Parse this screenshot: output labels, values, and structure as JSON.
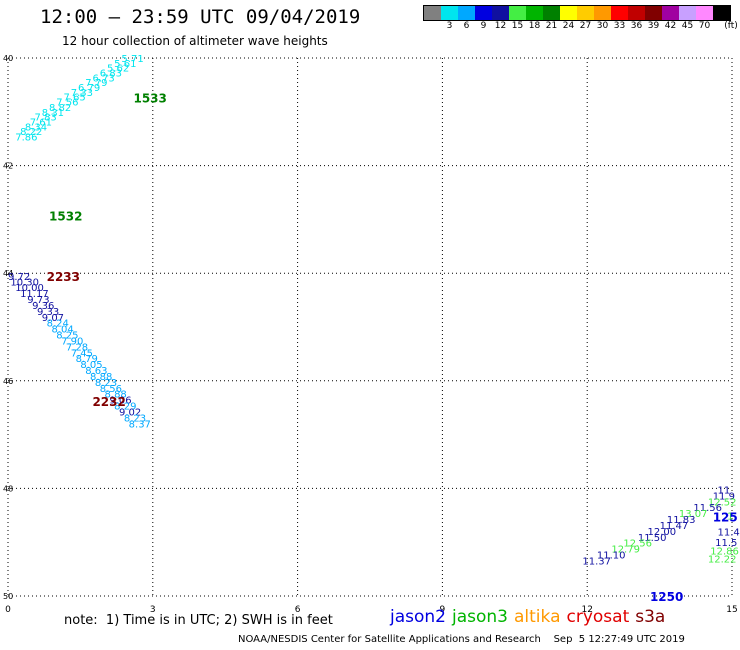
{
  "header": {
    "title": "12:00 – 23:59 UTC 09/04/2019",
    "subtitle": "12 hour collection of altimeter wave heights"
  },
  "colorbar": {
    "unit": "(ft)",
    "swatches": [
      {
        "color": "#808080",
        "label": ""
      },
      {
        "color": "#00e5ee",
        "label": "3"
      },
      {
        "color": "#00a8ff",
        "label": "6"
      },
      {
        "color": "#0000e0",
        "label": "9"
      },
      {
        "color": "#1010a0",
        "label": "12"
      },
      {
        "color": "#44ee44",
        "label": "15"
      },
      {
        "color": "#00b400",
        "label": "18"
      },
      {
        "color": "#008000",
        "label": "21"
      },
      {
        "color": "#ffff00",
        "label": "24"
      },
      {
        "color": "#ffcc00",
        "label": "27"
      },
      {
        "color": "#ff9900",
        "label": "30"
      },
      {
        "color": "#ff0000",
        "label": "33"
      },
      {
        "color": "#c00000",
        "label": "36"
      },
      {
        "color": "#800000",
        "label": "39"
      },
      {
        "color": "#a000a0",
        "label": "42"
      },
      {
        "color": "#c8a0ff",
        "label": "45"
      },
      {
        "color": "#ff88ff",
        "label": "70"
      },
      {
        "color": "#000000",
        "label": ""
      }
    ]
  },
  "map": {
    "lon_ticks": [
      "0",
      "3",
      "6",
      "9",
      "12",
      "15"
    ],
    "lat_ticks": [
      "40",
      "42",
      "44",
      "46",
      "48",
      "50"
    ],
    "lon_range": [
      0,
      15
    ],
    "lat_range": [
      40,
      50
    ],
    "grid": true,
    "pass_labels": [
      {
        "text": "1533",
        "lon": 2.6,
        "lat": 40.73,
        "color": "#008000"
      },
      {
        "text": "1532",
        "lon": 0.85,
        "lat": 42.93,
        "color": "#008000"
      },
      {
        "text": "2233",
        "lon": 0.8,
        "lat": 44.05,
        "color": "#800000"
      },
      {
        "text": "2232",
        "lon": 1.75,
        "lat": 46.38,
        "color": "#800000"
      },
      {
        "text": "1250",
        "lon": 13.3,
        "lat": 50.0,
        "color": "#0000e0"
      },
      {
        "text": "125",
        "lon": 14.6,
        "lat": 48.52,
        "color": "#0000e0"
      }
    ],
    "wave_heights": [
      {
        "text": "5.71",
        "lon": 2.35,
        "lat": 40.0,
        "color": "#00e5ee"
      },
      {
        "text": "5.61",
        "lon": 2.2,
        "lat": 40.09,
        "color": "#00e5ee"
      },
      {
        "text": "5.62",
        "lon": 2.05,
        "lat": 40.18,
        "color": "#00e5ee"
      },
      {
        "text": "6.83",
        "lon": 1.9,
        "lat": 40.27,
        "color": "#00e5ee"
      },
      {
        "text": "6.73",
        "lon": 1.75,
        "lat": 40.36,
        "color": "#00e5ee"
      },
      {
        "text": "7.79",
        "lon": 1.6,
        "lat": 40.45,
        "color": "#00e5ee"
      },
      {
        "text": "6.79",
        "lon": 1.45,
        "lat": 40.54,
        "color": "#00e5ee"
      },
      {
        "text": "7.33",
        "lon": 1.3,
        "lat": 40.63,
        "color": "#00e5ee"
      },
      {
        "text": "7.65",
        "lon": 1.15,
        "lat": 40.72,
        "color": "#00e5ee"
      },
      {
        "text": "7.56",
        "lon": 1.0,
        "lat": 40.81,
        "color": "#00e5ee"
      },
      {
        "text": "8.82",
        "lon": 0.85,
        "lat": 40.91,
        "color": "#00e5ee"
      },
      {
        "text": "8.31",
        "lon": 0.7,
        "lat": 41.0,
        "color": "#00e5ee"
      },
      {
        "text": "7.83",
        "lon": 0.55,
        "lat": 41.09,
        "color": "#00e5ee"
      },
      {
        "text": "7.61",
        "lon": 0.45,
        "lat": 41.18,
        "color": "#00e5ee"
      },
      {
        "text": "8.34",
        "lon": 0.35,
        "lat": 41.27,
        "color": "#00e5ee"
      },
      {
        "text": "8.22",
        "lon": 0.25,
        "lat": 41.36,
        "color": "#00e5ee"
      },
      {
        "text": "7.86",
        "lon": 0.15,
        "lat": 41.46,
        "color": "#00e5ee"
      },
      {
        "text": "9.72",
        "lon": 0.0,
        "lat": 44.05,
        "color": "#1010a0"
      },
      {
        "text": "10.30",
        "lon": 0.05,
        "lat": 44.15,
        "color": "#1010a0"
      },
      {
        "text": "10.00",
        "lon": 0.15,
        "lat": 44.26,
        "color": "#1010a0"
      },
      {
        "text": "11.17",
        "lon": 0.25,
        "lat": 44.37,
        "color": "#1010a0"
      },
      {
        "text": "9.73",
        "lon": 0.4,
        "lat": 44.48,
        "color": "#1010a0"
      },
      {
        "text": "9.36",
        "lon": 0.5,
        "lat": 44.59,
        "color": "#1010a0"
      },
      {
        "text": "9.33",
        "lon": 0.6,
        "lat": 44.7,
        "color": "#1010a0"
      },
      {
        "text": "9.07",
        "lon": 0.7,
        "lat": 44.81,
        "color": "#1010a0"
      },
      {
        "text": "8.24",
        "lon": 0.8,
        "lat": 44.92,
        "color": "#00a8ff"
      },
      {
        "text": "8.04",
        "lon": 0.9,
        "lat": 45.03,
        "color": "#00a8ff"
      },
      {
        "text": "8.25",
        "lon": 1.0,
        "lat": 45.14,
        "color": "#00a8ff"
      },
      {
        "text": "7.90",
        "lon": 1.1,
        "lat": 45.25,
        "color": "#00a8ff"
      },
      {
        "text": "7.28",
        "lon": 1.2,
        "lat": 45.36,
        "color": "#00a8ff"
      },
      {
        "text": "7.45",
        "lon": 1.3,
        "lat": 45.47,
        "color": "#00a8ff"
      },
      {
        "text": "8.79",
        "lon": 1.4,
        "lat": 45.58,
        "color": "#00a8ff"
      },
      {
        "text": "8.05",
        "lon": 1.5,
        "lat": 45.69,
        "color": "#00a8ff"
      },
      {
        "text": "8.63",
        "lon": 1.6,
        "lat": 45.8,
        "color": "#00a8ff"
      },
      {
        "text": "8.88",
        "lon": 1.7,
        "lat": 45.91,
        "color": "#00a8ff"
      },
      {
        "text": "8.23",
        "lon": 1.8,
        "lat": 46.02,
        "color": "#00a8ff"
      },
      {
        "text": "8.56",
        "lon": 1.9,
        "lat": 46.13,
        "color": "#00a8ff"
      },
      {
        "text": "8.88",
        "lon": 2.0,
        "lat": 46.24,
        "color": "#00a8ff"
      },
      {
        "text": "9.06",
        "lon": 2.1,
        "lat": 46.35,
        "color": "#1010a0"
      },
      {
        "text": "8.29",
        "lon": 2.2,
        "lat": 46.46,
        "color": "#00a8ff"
      },
      {
        "text": "9.02",
        "lon": 2.3,
        "lat": 46.57,
        "color": "#1010a0"
      },
      {
        "text": "8.23",
        "lon": 2.4,
        "lat": 46.68,
        "color": "#00a8ff"
      },
      {
        "text": "8.37",
        "lon": 2.5,
        "lat": 46.79,
        "color": "#00a8ff"
      },
      {
        "text": "11",
        "lon": 14.7,
        "lat": 48.02,
        "color": "#1010a0"
      },
      {
        "text": "11.9",
        "lon": 14.6,
        "lat": 48.13,
        "color": "#1010a0"
      },
      {
        "text": "12.52",
        "lon": 14.5,
        "lat": 48.24,
        "color": "#44ee44"
      },
      {
        "text": "11.56",
        "lon": 14.2,
        "lat": 48.35,
        "color": "#1010a0"
      },
      {
        "text": "13.07",
        "lon": 13.9,
        "lat": 48.46,
        "color": "#44ee44"
      },
      {
        "text": "11.83",
        "lon": 13.65,
        "lat": 48.57,
        "color": "#1010a0"
      },
      {
        "text": "11.47",
        "lon": 13.5,
        "lat": 48.68,
        "color": "#1010a0"
      },
      {
        "text": "12.00",
        "lon": 13.25,
        "lat": 48.79,
        "color": "#1010a0"
      },
      {
        "text": "11.50",
        "lon": 13.05,
        "lat": 48.9,
        "color": "#1010a0"
      },
      {
        "text": "12.56",
        "lon": 12.75,
        "lat": 49.01,
        "color": "#44ee44"
      },
      {
        "text": "12.79",
        "lon": 12.5,
        "lat": 49.12,
        "color": "#44ee44"
      },
      {
        "text": "11.10",
        "lon": 12.2,
        "lat": 49.23,
        "color": "#1010a0"
      },
      {
        "text": "11.37",
        "lon": 11.9,
        "lat": 49.34,
        "color": "#1010a0"
      },
      {
        "text": "11.4",
        "lon": 14.7,
        "lat": 48.8,
        "color": "#1010a0"
      },
      {
        "text": "11.5",
        "lon": 14.65,
        "lat": 49.0,
        "color": "#1010a0"
      },
      {
        "text": "12.86",
        "lon": 14.55,
        "lat": 49.15,
        "color": "#44ee44"
      },
      {
        "text": "12.22",
        "lon": 14.5,
        "lat": 49.3,
        "color": "#44ee44"
      },
      {
        "text": "1",
        "lon": 14.9,
        "lat": 48.5,
        "color": "#44ee44"
      }
    ]
  },
  "note": "note:  1) Time is in UTC; 2) SWH is in feet",
  "legend": [
    {
      "name": "jason2",
      "color": "#0000e0"
    },
    {
      "name": "jason3",
      "color": "#00b400"
    },
    {
      "name": "altika",
      "color": "#ff9900"
    },
    {
      "name": "cryosat",
      "color": "#e00000"
    },
    {
      "name": "s3a",
      "color": "#800000"
    }
  ],
  "footer": "NOAA/NESDIS Center for Satellite Applications and Research    Sep  5 12:27:49 UTC 2019"
}
